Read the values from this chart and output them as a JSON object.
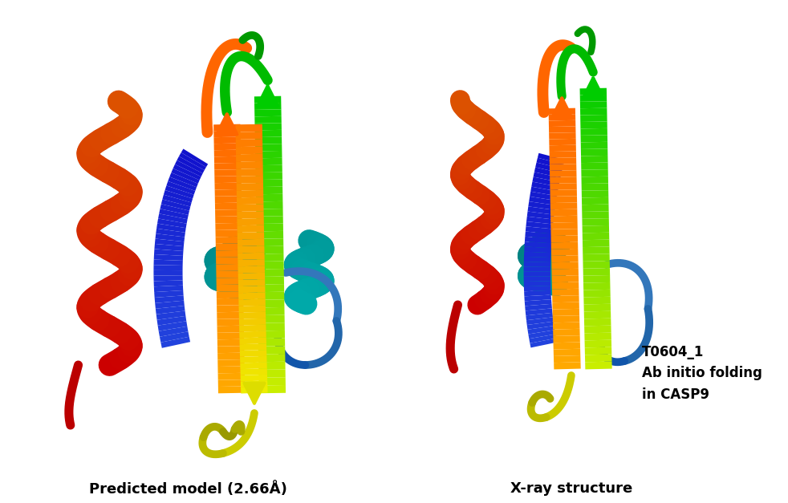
{
  "label_left": "Predicted model (2.66Å)",
  "label_right": "X-ray structure",
  "annotation_line1": "T0604_1",
  "annotation_line2": "Ab initio folding",
  "annotation_line3": "in CASP9",
  "bg_color": "#ffffff",
  "label_fontsize": 13,
  "annotation_fontsize": 12,
  "figsize": [
    9.82,
    6.27
  ],
  "dpi": 100
}
